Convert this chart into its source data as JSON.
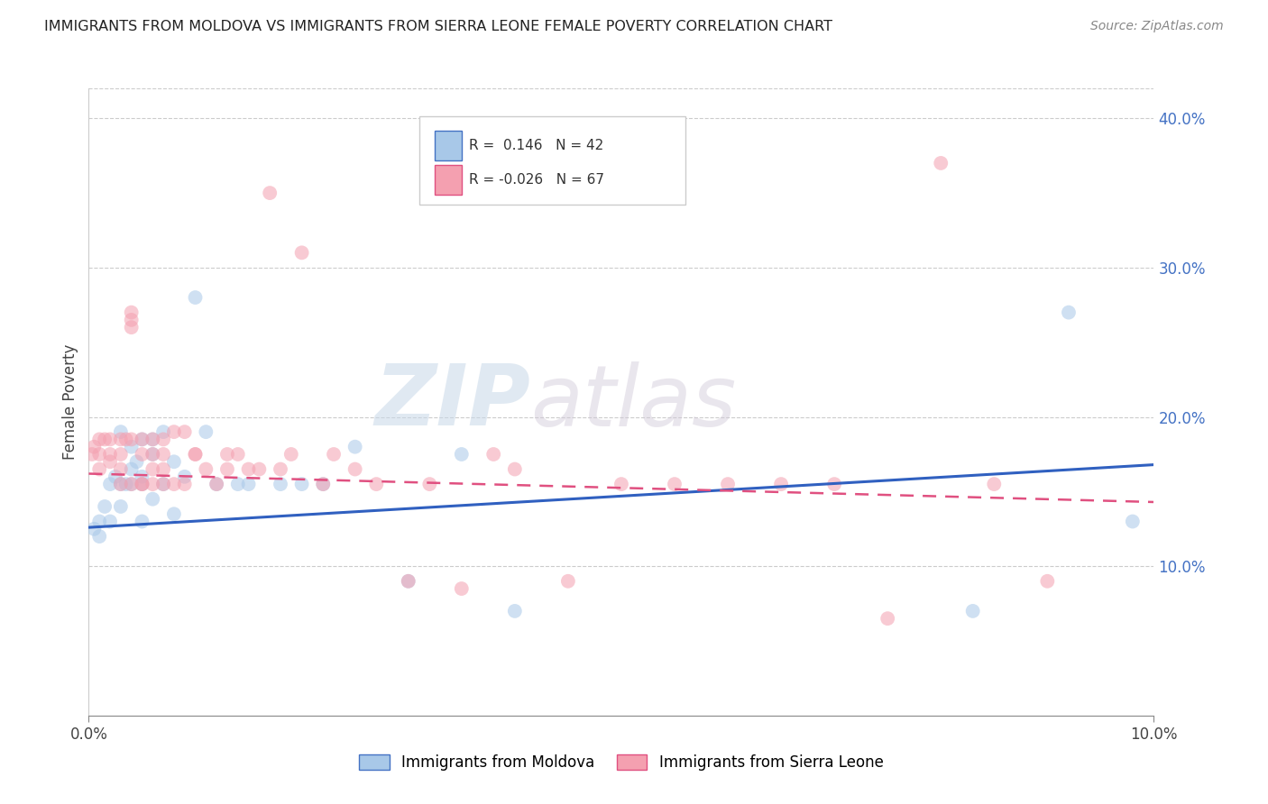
{
  "title": "IMMIGRANTS FROM MOLDOVA VS IMMIGRANTS FROM SIERRA LEONE FEMALE POVERTY CORRELATION CHART",
  "source": "Source: ZipAtlas.com",
  "ylabel": "Female Poverty",
  "legend_label1": "Immigrants from Moldova",
  "legend_label2": "Immigrants from Sierra Leone",
  "R1": 0.146,
  "N1": 42,
  "R2": -0.026,
  "N2": 67,
  "color1": "#a8c8e8",
  "color2": "#f4a0b0",
  "line_color1": "#3060c0",
  "line_color2": "#e05080",
  "xlim": [
    0,
    0.1
  ],
  "ylim": [
    0,
    0.42
  ],
  "xtick_positions": [
    0.0,
    0.1
  ],
  "xtick_labels": [
    "0.0%",
    "10.0%"
  ],
  "yticks_right": [
    0.1,
    0.2,
    0.3,
    0.4
  ],
  "moldova_x": [
    0.0005,
    0.001,
    0.001,
    0.0015,
    0.002,
    0.002,
    0.0025,
    0.003,
    0.003,
    0.003,
    0.0035,
    0.004,
    0.004,
    0.004,
    0.0045,
    0.005,
    0.005,
    0.005,
    0.005,
    0.006,
    0.006,
    0.006,
    0.007,
    0.007,
    0.008,
    0.008,
    0.009,
    0.01,
    0.011,
    0.012,
    0.014,
    0.015,
    0.018,
    0.02,
    0.022,
    0.025,
    0.03,
    0.035,
    0.04,
    0.083,
    0.092,
    0.098
  ],
  "moldova_y": [
    0.125,
    0.13,
    0.12,
    0.14,
    0.155,
    0.13,
    0.16,
    0.155,
    0.14,
    0.19,
    0.155,
    0.18,
    0.165,
    0.155,
    0.17,
    0.185,
    0.16,
    0.155,
    0.13,
    0.185,
    0.175,
    0.145,
    0.19,
    0.155,
    0.17,
    0.135,
    0.16,
    0.28,
    0.19,
    0.155,
    0.155,
    0.155,
    0.155,
    0.155,
    0.155,
    0.18,
    0.09,
    0.175,
    0.07,
    0.07,
    0.27,
    0.13
  ],
  "sierraleone_x": [
    0.0003,
    0.0005,
    0.001,
    0.001,
    0.001,
    0.0015,
    0.002,
    0.002,
    0.002,
    0.003,
    0.003,
    0.003,
    0.003,
    0.0035,
    0.004,
    0.004,
    0.004,
    0.004,
    0.004,
    0.005,
    0.005,
    0.005,
    0.005,
    0.006,
    0.006,
    0.006,
    0.006,
    0.007,
    0.007,
    0.007,
    0.007,
    0.008,
    0.008,
    0.009,
    0.009,
    0.01,
    0.01,
    0.011,
    0.012,
    0.013,
    0.013,
    0.014,
    0.015,
    0.016,
    0.017,
    0.018,
    0.019,
    0.02,
    0.022,
    0.023,
    0.025,
    0.027,
    0.03,
    0.032,
    0.035,
    0.038,
    0.04,
    0.045,
    0.05,
    0.055,
    0.06,
    0.065,
    0.07,
    0.075,
    0.08,
    0.085,
    0.09
  ],
  "sierraleone_y": [
    0.175,
    0.18,
    0.185,
    0.175,
    0.165,
    0.185,
    0.175,
    0.17,
    0.185,
    0.175,
    0.185,
    0.165,
    0.155,
    0.185,
    0.265,
    0.26,
    0.27,
    0.185,
    0.155,
    0.185,
    0.175,
    0.155,
    0.155,
    0.185,
    0.175,
    0.165,
    0.155,
    0.165,
    0.185,
    0.175,
    0.155,
    0.19,
    0.155,
    0.155,
    0.19,
    0.175,
    0.175,
    0.165,
    0.155,
    0.175,
    0.165,
    0.175,
    0.165,
    0.165,
    0.35,
    0.165,
    0.175,
    0.31,
    0.155,
    0.175,
    0.165,
    0.155,
    0.09,
    0.155,
    0.085,
    0.175,
    0.165,
    0.09,
    0.155,
    0.155,
    0.155,
    0.155,
    0.155,
    0.065,
    0.37,
    0.155,
    0.09
  ],
  "watermark_zip": "ZIP",
  "watermark_atlas": "atlas",
  "marker_size": 130,
  "marker_alpha": 0.55,
  "grid_color": "#cccccc",
  "background_color": "#ffffff",
  "trendline1_x0": 0.0,
  "trendline1_y0": 0.126,
  "trendline1_x1": 0.1,
  "trendline1_y1": 0.168,
  "trendline2_x0": 0.0,
  "trendline2_y0": 0.162,
  "trendline2_x1": 0.1,
  "trendline2_y1": 0.143
}
